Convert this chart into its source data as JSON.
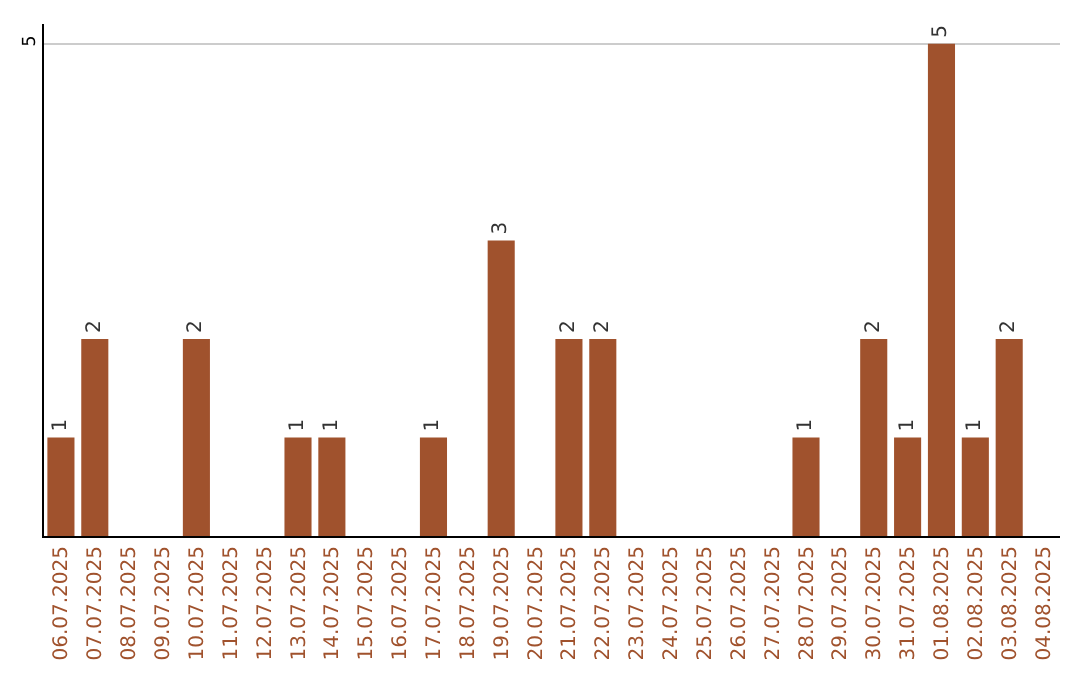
{
  "chart_data": {
    "type": "bar",
    "categories": [
      "06.07.2025",
      "07.07.2025",
      "08.07.2025",
      "09.07.2025",
      "10.07.2025",
      "11.07.2025",
      "12.07.2025",
      "13.07.2025",
      "14.07.2025",
      "15.07.2025",
      "16.07.2025",
      "17.07.2025",
      "18.07.2025",
      "19.07.2025",
      "20.07.2025",
      "21.07.2025",
      "22.07.2025",
      "23.07.2025",
      "24.07.2025",
      "25.07.2025",
      "26.07.2025",
      "27.07.2025",
      "28.07.2025",
      "29.07.2025",
      "30.07.2025",
      "31.07.2025",
      "01.08.2025",
      "02.08.2025",
      "03.08.2025",
      "04.08.2025"
    ],
    "values": [
      1,
      2,
      0,
      0,
      2,
      0,
      0,
      1,
      1,
      0,
      0,
      1,
      0,
      3,
      0,
      2,
      2,
      0,
      0,
      0,
      0,
      0,
      1,
      0,
      2,
      1,
      5,
      1,
      2,
      0
    ],
    "value_labels": [
      "1",
      "2",
      null,
      null,
      "2",
      null,
      null,
      "1",
      "1",
      null,
      null,
      "1",
      null,
      "3",
      null,
      "2",
      "2",
      null,
      null,
      null,
      null,
      null,
      "1",
      null,
      "2",
      "1",
      "5",
      "1",
      "2",
      null
    ],
    "color": "#a0522d",
    "ylim": [
      0,
      5.2
    ],
    "yticks": [
      5
    ],
    "grid": "y",
    "legend": false
  }
}
